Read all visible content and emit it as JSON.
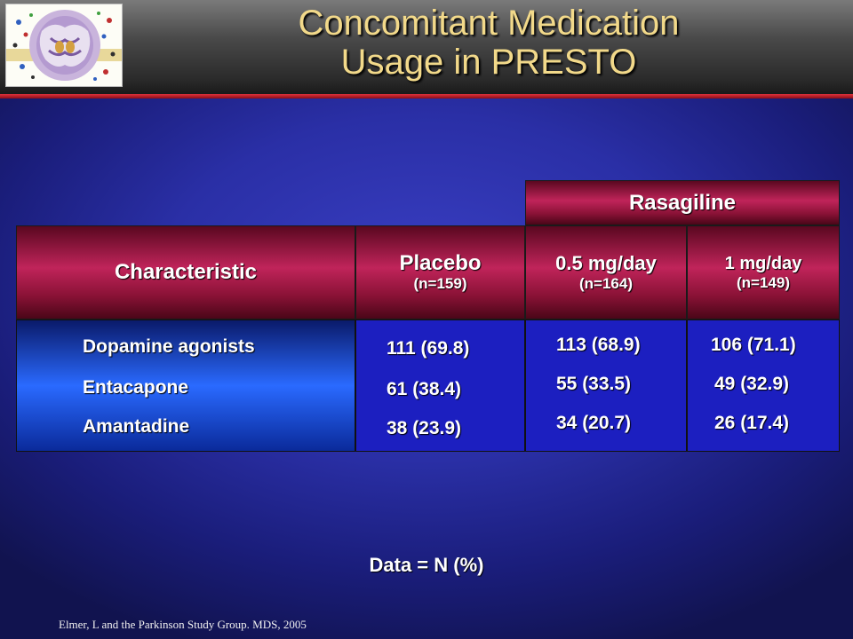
{
  "slide": {
    "title_line1": "Concomitant Medication",
    "title_line2": "Usage in PRESTO",
    "logo_icon": "brain-scan-logo-icon"
  },
  "table": {
    "group_header": "Rasagiline",
    "columns": [
      {
        "label": "Characteristic",
        "sub": ""
      },
      {
        "label": "Placebo",
        "sub": "(n=159)"
      },
      {
        "label": "0.5 mg/day",
        "sub": "(n=164)"
      },
      {
        "label": "1 mg/day",
        "sub": "(n=149)"
      }
    ],
    "rows": [
      {
        "characteristic": "Dopamine agonists",
        "placebo": "111 (69.8)",
        "dose_05": "113 (68.9)",
        "dose_1": "106 (71.1)"
      },
      {
        "characteristic": "Entacapone",
        "placebo": "61 (38.4)",
        "dose_05": "55 (33.5)",
        "dose_1": "49 (32.9)"
      },
      {
        "characteristic": "Amantadine",
        "placebo": "38 (23.9)",
        "dose_05": "34 (20.7)",
        "dose_1": "26 (17.4)"
      }
    ]
  },
  "footnote": "Data = N (%)",
  "citation": "Elmer, L and the Parkinson Study Group. MDS, 2005",
  "colors": {
    "title": "#f2d98a",
    "header_maroon": "#a01840",
    "body_blue": "#1c1fc0"
  }
}
